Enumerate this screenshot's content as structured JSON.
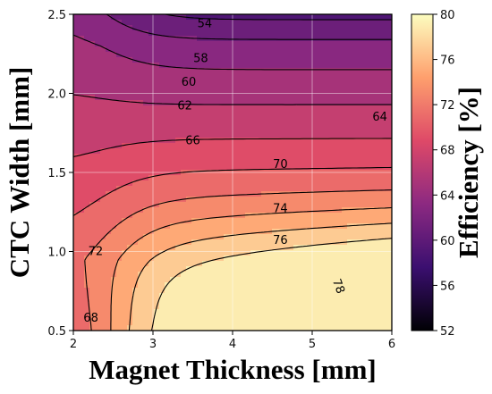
{
  "chart_data": {
    "type": "contour",
    "xlabel": "Magnet Thickness [mm]",
    "ylabel": "CTC Width [mm]",
    "xlim": [
      2,
      6
    ],
    "ylim": [
      0.5,
      2.5
    ],
    "x_ticks": [
      "2",
      "3",
      "4",
      "5",
      "6"
    ],
    "y_ticks": [
      "0.5",
      "1.0",
      "1.5",
      "2.0",
      "2.5"
    ],
    "grid": true,
    "colorbar": {
      "label": "Efficiency [%]",
      "range": [
        52,
        80
      ],
      "ticks": [
        "52",
        "56",
        "60",
        "64",
        "68",
        "72",
        "76",
        "80"
      ],
      "colormap": "magma",
      "stops": [
        "#000004",
        "#3b0f70",
        "#8c2981",
        "#de4968",
        "#fe9f6d",
        "#fcfdbf"
      ]
    },
    "levels": [
      52,
      54,
      56,
      58,
      60,
      62,
      64,
      66,
      68,
      70,
      72,
      74,
      76,
      78
    ],
    "contour_labels": [
      {
        "text": "68",
        "x": 2.22,
        "y": 0.58
      },
      {
        "text": "72",
        "x": 2.28,
        "y": 1.0
      },
      {
        "text": "74",
        "x": 4.6,
        "y": 1.27
      },
      {
        "text": "76",
        "x": 4.6,
        "y": 1.07
      },
      {
        "text": "78",
        "x": 5.33,
        "y": 0.78,
        "rotate": 70
      },
      {
        "text": "70",
        "x": 4.6,
        "y": 1.55
      },
      {
        "text": "66",
        "x": 3.5,
        "y": 1.7
      },
      {
        "text": "64",
        "x": 5.85,
        "y": 1.85
      },
      {
        "text": "62",
        "x": 3.4,
        "y": 1.92
      },
      {
        "text": "60",
        "x": 3.45,
        "y": 2.07
      },
      {
        "text": "58",
        "x": 3.6,
        "y": 2.22
      },
      {
        "text": "54",
        "x": 3.65,
        "y": 2.44
      }
    ]
  }
}
